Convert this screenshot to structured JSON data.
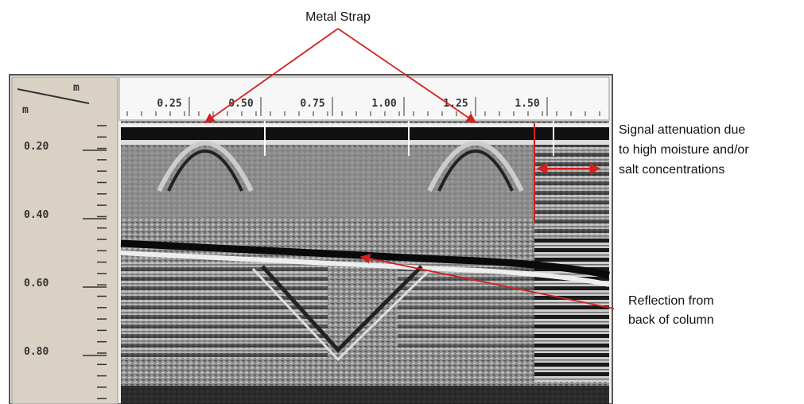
{
  "annotations": {
    "metal_strap": "Metal Strap",
    "attenuation": [
      "Signal attenuation due",
      "to high moisture and/or",
      "salt concentrations"
    ],
    "reflection": [
      "Reflection from",
      "back of column"
    ]
  },
  "ruler": {
    "corner_top": "m",
    "corner_left": "m",
    "horizontal_ticks": [
      "0.25",
      "0.50",
      "0.75",
      "1.00",
      "1.25",
      "1.50"
    ],
    "vertical_ticks": [
      "0.20",
      "0.40",
      "0.60",
      "0.80"
    ]
  }
}
